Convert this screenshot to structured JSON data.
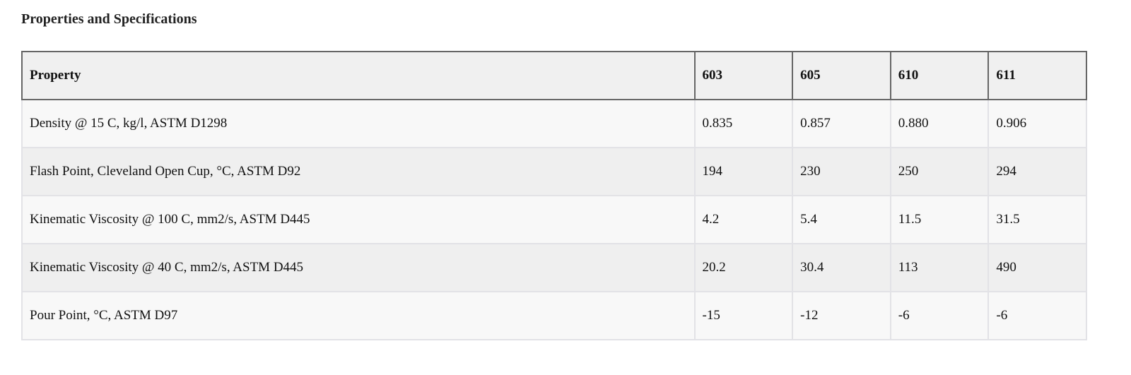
{
  "title": "Properties and Specifications",
  "table": {
    "headers": [
      "Property",
      "603",
      "605",
      "610",
      "611"
    ],
    "rows": [
      [
        "Density @ 15 C, kg/l, ASTM D1298",
        "0.835",
        "0.857",
        "0.880",
        "0.906"
      ],
      [
        "Flash Point, Cleveland Open Cup, °C, ASTM D92",
        "194",
        "230",
        "250",
        "294"
      ],
      [
        "Kinematic Viscosity @ 100 C, mm2/s, ASTM D445",
        "4.2",
        "5.4",
        "11.5",
        "31.5"
      ],
      [
        "Kinematic Viscosity @ 40 C, mm2/s, ASTM D445",
        "20.2",
        "30.4",
        "113",
        "490"
      ],
      [
        "Pour Point, °C, ASTM D97",
        "-15",
        "-12",
        "-6",
        "-6"
      ]
    ]
  }
}
